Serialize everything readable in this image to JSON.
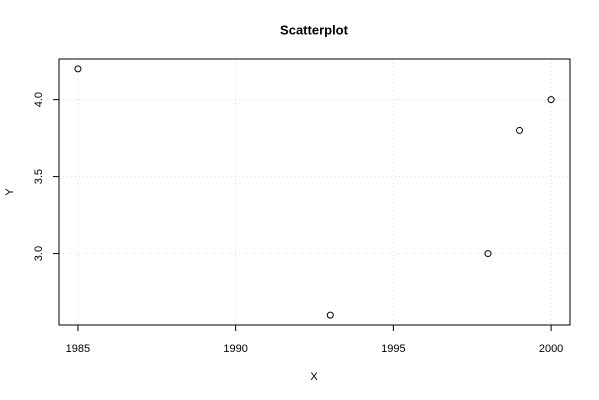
{
  "chart_data": {
    "type": "scatter",
    "title": "Scatterplot",
    "x_label": "X",
    "y_label": "Y",
    "x": [
      1985,
      1993,
      1998,
      1999,
      2000
    ],
    "values": [
      4.2,
      2.6,
      3.0,
      3.8,
      4.0
    ],
    "color": "#000000",
    "xlim": [
      1984.4,
      2000.6
    ],
    "ylim": [
      2.536,
      4.264
    ],
    "xticks": [
      1985,
      1990,
      1995,
      2000
    ],
    "yticks": [
      {
        "value": 3,
        "label": "3.0"
      },
      {
        "value": 3.5,
        "label": "3.5"
      },
      {
        "value": 4,
        "label": "4.0"
      }
    ],
    "grid": true
  }
}
